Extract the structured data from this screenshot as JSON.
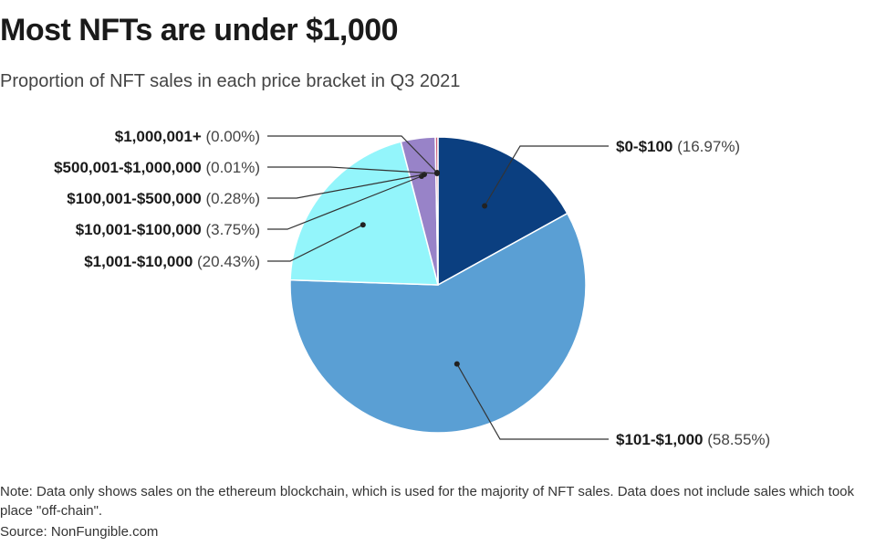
{
  "title": "Most NFTs are under $1,000",
  "subtitle": "Proportion of NFT sales in each price bracket in Q3 2021",
  "note": "Note: Data only shows sales on the ethereum blockchain, which is used for the majority of NFT sales. Data does not include sales which took place \"off-chain\".",
  "source": "Source: NonFungible.com",
  "chart_data": {
    "type": "pie",
    "title": "Most NFTs are under $1,000",
    "subtitle": "Proportion of NFT sales in each price bracket in Q3 2021",
    "slices": [
      {
        "label": "$0-$100",
        "pct_text": "(16.97%)",
        "value": 16.97,
        "color": "#0b3f80"
      },
      {
        "label": "$101-$1,000",
        "pct_text": "(58.55%)",
        "value": 58.55,
        "color": "#5a9fd4"
      },
      {
        "label": "$1,001-$10,000",
        "pct_text": "(20.43%)",
        "value": 20.43,
        "color": "#93f5fb"
      },
      {
        "label": "$10,001-$100,000",
        "pct_text": "(3.75%)",
        "value": 3.75,
        "color": "#9883c8"
      },
      {
        "label": "$100,001-$500,000",
        "pct_text": "(0.28%)",
        "value": 0.28,
        "color": "#c85a78"
      },
      {
        "label": "$500,001-$1,000,000",
        "pct_text": "(0.01%)",
        "value": 0.01,
        "color": "#d8a0b0"
      },
      {
        "label": "$1,000,001+",
        "pct_text": "(0.00%)",
        "value": 0.0,
        "color": "#cccccc"
      }
    ]
  }
}
